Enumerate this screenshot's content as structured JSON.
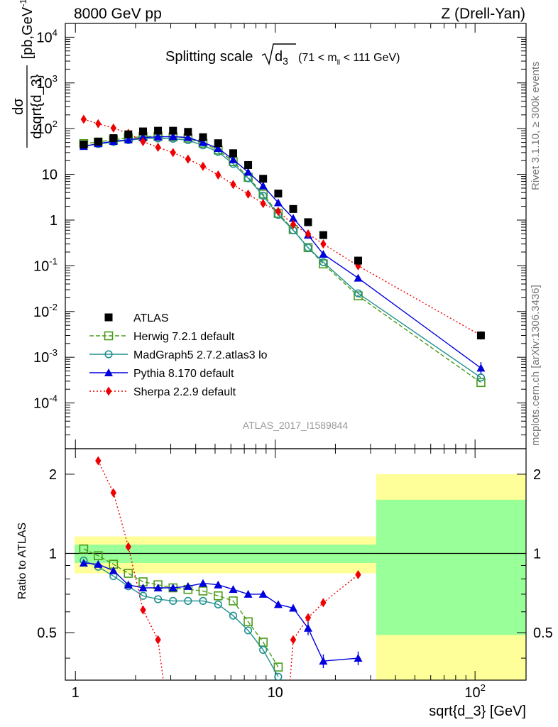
{
  "header": {
    "left": "8000 GeV pp",
    "right": "Z (Drell-Yan)"
  },
  "side": {
    "rivet": "Rivet 3.1.10, ≥ 300k events",
    "mcplots": "mcplots.cern.ch [arXiv:1306.3436]"
  },
  "analysis_id": "ATLAS_2017_I1589844",
  "colors": {
    "atlas": "#000000",
    "herwig": "#4a9a1a",
    "madgraph": "#1f9090",
    "pythia": "#0000dd",
    "sherpa": "#ee0000",
    "band_inner": "#99ff99",
    "band_outer": "#ffff99"
  },
  "chart_data": [
    {
      "type": "scatter",
      "title": "Splitting scale √d3 (71 < mll < 111 GeV)",
      "title_parts": {
        "main": "Splitting scale",
        "var": "d",
        "var_sub": "3",
        "range": "(71 < m",
        "range_sub": "ll",
        "range_end": " < 111 GeV)"
      },
      "ylabel": "dσ / dsqrt{d_3} [pb,GeV⁻¹]",
      "ylabel_parts": {
        "num": "dσ",
        "den": "dsqrt{d_3}",
        "unit": "[pb,GeV",
        "unit_sup": "-1",
        "unit_end": "]"
      },
      "xscale": "log",
      "yscale": "log",
      "xlim": [
        0.89,
        180
      ],
      "ylim": [
        1e-05,
        20000
      ],
      "y_ticks": [
        {
          "value": 0.0001,
          "base": "10",
          "exp": "-4"
        },
        {
          "value": 0.001,
          "base": "10",
          "exp": "-3"
        },
        {
          "value": 0.01,
          "base": "10",
          "exp": "-2"
        },
        {
          "value": 0.1,
          "base": "10",
          "exp": "-1"
        },
        {
          "value": 1,
          "base": "1",
          "exp": ""
        },
        {
          "value": 10,
          "base": "10",
          "exp": ""
        },
        {
          "value": 100,
          "base": "10",
          "exp": "2"
        },
        {
          "value": 1000,
          "base": "10",
          "exp": "3"
        },
        {
          "value": 10000,
          "base": "10",
          "exp": "4"
        }
      ],
      "legend_position": "lower-left",
      "x": [
        1.1,
        1.3,
        1.55,
        1.84,
        2.18,
        2.59,
        3.08,
        3.66,
        4.35,
        5.18,
        6.16,
        7.32,
        8.7,
        10.35,
        12.3,
        14.6,
        17.4,
        26.0,
        107.0
      ],
      "series": [
        {
          "name": "ATLAS",
          "style": "data",
          "values": [
            45,
            52,
            62,
            75,
            87,
            90,
            90,
            85,
            65,
            48,
            29,
            16,
            8.0,
            3.8,
            1.75,
            0.9,
            0.47,
            0.13,
            0.003
          ]
        },
        {
          "name": "Herwig 7.2.1 default",
          "style": "herwig",
          "values": [
            47,
            51,
            57,
            63,
            67,
            68,
            66,
            62,
            48,
            34,
            19,
            8.6,
            3.7,
            1.4,
            0.62,
            0.25,
            0.11,
            0.022,
            0.00028
          ]
        },
        {
          "name": "MadGraph5 2.7.2.atlas3 lo",
          "style": "madgraph",
          "values": [
            42,
            46,
            51,
            56,
            60,
            61,
            60,
            56,
            43,
            31,
            17,
            8.2,
            3.4,
            1.3,
            0.6,
            0.25,
            0.12,
            0.025,
            0.00036
          ]
        },
        {
          "name": "Pythia 8.170 default",
          "style": "pythia",
          "values": [
            41,
            47,
            53,
            57,
            64,
            66,
            67,
            64,
            50,
            37,
            21,
            11.2,
            5.6,
            2.4,
            1.1,
            0.47,
            0.18,
            0.054,
            0.00058
          ]
        },
        {
          "name": "Sherpa 2.2.9 default",
          "style": "sherpa",
          "values": [
            160,
            128,
            103,
            79,
            52,
            39,
            30,
            21.5,
            15,
            9.7,
            6.0,
            3.7,
            2.3,
            1.55,
            0.8,
            0.5,
            0.3,
            0.1,
            0.003
          ]
        }
      ]
    },
    {
      "type": "scatter",
      "ylabel": "Ratio to ATLAS",
      "xlabel": "sqrt{d_3} [GeV]",
      "xscale": "log",
      "xlim": [
        0.89,
        180
      ],
      "ylim": [
        0.33,
        2.5
      ],
      "y_ticks": [
        0.5,
        1,
        2
      ],
      "x_ticks": [
        {
          "value": 1,
          "base": "1",
          "exp": ""
        },
        {
          "value": 10,
          "base": "10",
          "exp": ""
        },
        {
          "value": 100,
          "base": "10",
          "exp": "2"
        }
      ],
      "reference_line": 1,
      "uncertainty_bands": [
        {
          "x0": 0.99,
          "x1": 32,
          "inner": 0.08,
          "outer": 0.16
        },
        {
          "x0": 32,
          "x1": 180,
          "inner_lo": 0.49,
          "inner_hi": 1.6,
          "outer_lo": 0.33,
          "outer_hi": 2.0
        }
      ],
      "series": [
        {
          "name": "Herwig 7.2.1 default",
          "style": "herwig",
          "x": [
            1.1,
            1.3,
            1.55,
            1.84,
            2.18,
            2.59,
            3.08,
            3.66,
            4.35,
            5.18,
            6.16,
            7.32,
            8.7,
            10.35
          ],
          "values": [
            1.04,
            0.98,
            0.91,
            0.84,
            0.78,
            0.76,
            0.74,
            0.73,
            0.72,
            0.69,
            0.66,
            0.55,
            0.46,
            0.37
          ]
        },
        {
          "name": "MadGraph5 2.7.2.atlas3 lo",
          "style": "madgraph",
          "x": [
            1.1,
            1.3,
            1.55,
            1.84,
            2.18,
            2.59,
            3.08,
            3.66,
            4.35,
            5.18,
            6.16,
            7.32,
            8.7,
            10.35
          ],
          "values": [
            0.94,
            0.89,
            0.82,
            0.75,
            0.69,
            0.67,
            0.66,
            0.66,
            0.66,
            0.64,
            0.58,
            0.51,
            0.43,
            0.34
          ]
        },
        {
          "name": "Pythia 8.170 default",
          "style": "pythia",
          "x": [
            1.1,
            1.3,
            1.55,
            1.84,
            2.18,
            2.59,
            3.08,
            3.66,
            4.35,
            5.18,
            6.16,
            7.32,
            8.7,
            10.35,
            12.3,
            14.6,
            17.4,
            26.0
          ],
          "values": [
            0.92,
            0.91,
            0.86,
            0.76,
            0.74,
            0.74,
            0.74,
            0.75,
            0.77,
            0.76,
            0.73,
            0.7,
            0.7,
            0.64,
            0.62,
            0.52,
            0.39,
            0.4
          ]
        },
        {
          "name": "Sherpa 2.2.9 default",
          "style": "sherpa",
          "x": [
            1.3,
            1.55,
            1.84,
            2.18,
            2.59,
            12.3,
            14.6,
            17.4,
            26.0
          ],
          "values": [
            2.25,
            1.7,
            1.06,
            0.61,
            0.47,
            0.47,
            0.57,
            0.65,
            0.83
          ]
        }
      ]
    }
  ]
}
